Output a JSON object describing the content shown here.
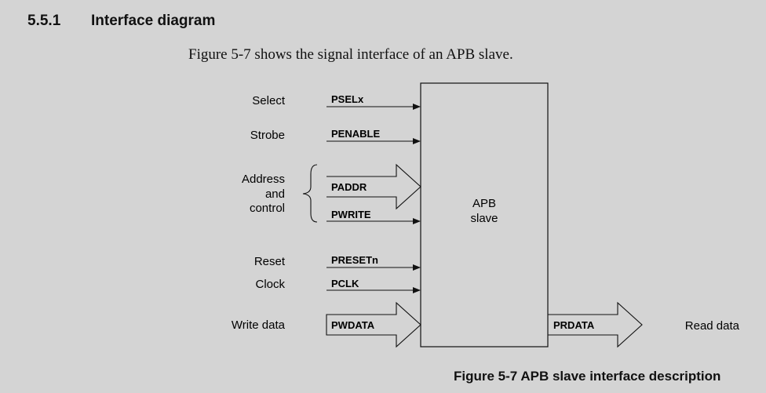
{
  "section": {
    "number": "5.5.1",
    "title": "Interface diagram"
  },
  "intro": "Figure 5-7 shows the signal interface of an APB slave.",
  "diagram": {
    "block_label_line1": "APB",
    "block_label_line2": "slave",
    "groups": {
      "select": "Select",
      "strobe": "Strobe",
      "address_line1": "Address",
      "address_line2": "and",
      "address_line3": "control",
      "reset": "Reset",
      "clock": "Clock",
      "write_data": "Write data",
      "read_data": "Read data"
    },
    "signals": {
      "psel": "PSELx",
      "penable": "PENABLE",
      "paddr": "PADDR",
      "pwrite": "PWRITE",
      "presetn": "PRESETn",
      "pclk": "PCLK",
      "pwdata": "PWDATA",
      "prdata": "PRDATA"
    }
  },
  "caption": "Figure 5-7 APB slave interface description"
}
